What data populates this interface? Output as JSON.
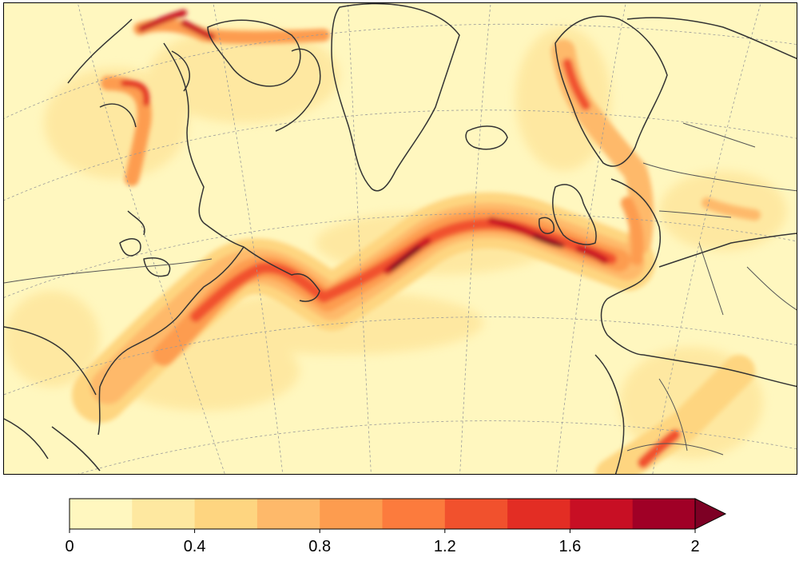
{
  "colorbar": {
    "ticks": [
      "0",
      "0.4",
      "0.8",
      "1.2",
      "1.6",
      "2"
    ],
    "levels": [
      0,
      0.2,
      0.4,
      0.6,
      0.8,
      1.0,
      1.2,
      1.4,
      1.6,
      1.8,
      2.0
    ],
    "colors": [
      "#fff7bf",
      "#fee8a0",
      "#fed580",
      "#feb96a",
      "#fd9c4f",
      "#fc7b3d",
      "#f1512d",
      "#e32d24",
      "#c80f24",
      "#a00026"
    ],
    "extend_color": "#7d0024",
    "extend": "max"
  },
  "map": {
    "region": "North Atlantic",
    "projection": "conic",
    "gridlines": true,
    "coastlines": true,
    "borders": true
  }
}
